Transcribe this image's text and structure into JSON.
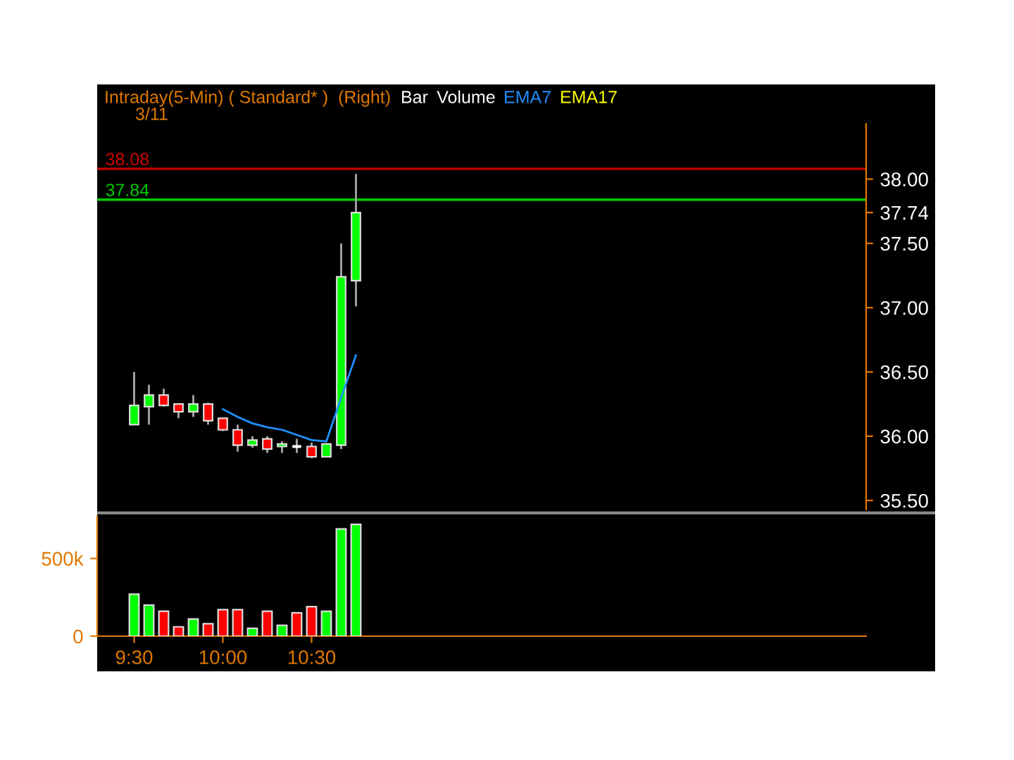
{
  "chart_data": [
    {
      "type": "candlestick",
      "title": "Intraday(5-Min) ( Standard* )  (Right)",
      "annotations": [
        "Bar",
        "Volume",
        "EMA17",
        "3/11"
      ],
      "categories": [
        null,
        null,
        null,
        null,
        null,
        null,
        null,
        null,
        null,
        null,
        null,
        null,
        null,
        null,
        null,
        null,
        null,
        null,
        null,
        null,
        null,
        null,
        null,
        null,
        null,
        null,
        null,
        null,
        null,
        null,
        null,
        null,
        null,
        null,
        null,
        null,
        null,
        null,
        null,
        null,
        null,
        null,
        null,
        null,
        null,
        null,
        null,
        null,
        null,
        null,
        null,
        null
      ],
      "ohlc": [
        null,
        null,
        [
          36.09,
          36.5,
          36.09,
          36.24
        ],
        [
          36.23,
          36.4,
          36.09,
          36.32
        ],
        [
          36.32,
          36.37,
          36.23,
          36.24
        ],
        [
          36.25,
          36.25,
          36.14,
          36.19
        ],
        [
          36.19,
          36.32,
          36.15,
          36.25
        ],
        [
          36.25,
          36.26,
          36.09,
          36.12
        ],
        [
          36.14,
          36.14,
          36.04,
          36.05
        ],
        [
          36.05,
          36.09,
          35.88,
          35.93
        ],
        [
          35.93,
          36.0,
          35.91,
          35.97
        ],
        [
          35.98,
          36.0,
          35.87,
          35.9
        ],
        [
          35.92,
          35.96,
          35.87,
          35.94
        ],
        [
          35.92,
          35.98,
          35.87,
          35.92
        ],
        [
          35.92,
          35.95,
          35.83,
          35.84
        ],
        [
          35.84,
          35.94,
          35.84,
          35.94
        ],
        [
          35.93,
          37.5,
          35.9,
          37.24
        ],
        [
          37.21,
          38.04,
          37.01,
          37.74
        ],
        null,
        null,
        null,
        null,
        null,
        null,
        null,
        null,
        null,
        null,
        null,
        null,
        null,
        null,
        null,
        null,
        null,
        null,
        null,
        null,
        null,
        null,
        null,
        null,
        null,
        null,
        null,
        null,
        null,
        null,
        null,
        null,
        null,
        null
      ],
      "colors": [
        null,
        null,
        "#00ff00",
        "#00ff00",
        "#ff0000",
        "#ff0000",
        "#00ff00",
        "#ff0000",
        "#ff0000",
        "#ff0000",
        "#00ff00",
        "#ff0000",
        "#00ff00",
        "#ffffff",
        "#ff0000",
        "#00ff00",
        "#00ff00",
        "#00ff00",
        null,
        null,
        null,
        null,
        null,
        null,
        null,
        null,
        null,
        null,
        null,
        null,
        null,
        null,
        null,
        null,
        null,
        null,
        null,
        null,
        null,
        null,
        null,
        null,
        null,
        null,
        null,
        null,
        null,
        null,
        null,
        null,
        null,
        null
      ],
      "series": [
        {
          "name": "EMA7",
          "type": "line",
          "color": "#1e90ff",
          "values": [
            null,
            null,
            null,
            null,
            null,
            null,
            null,
            null,
            36.21,
            36.15,
            36.1,
            36.07,
            36.05,
            36.01,
            35.97,
            35.96,
            36.3,
            36.63,
            null,
            null,
            null,
            null,
            null,
            null,
            null,
            null,
            null,
            null,
            null,
            null,
            null,
            null,
            null,
            null,
            null,
            null,
            null,
            null,
            null,
            null,
            null,
            null,
            null,
            null,
            null,
            null,
            null,
            null,
            null,
            null,
            null,
            null
          ]
        }
      ],
      "ref_lines": [
        {
          "axis": "y",
          "value": 38.08,
          "label": "38.08",
          "color": "#cc0000"
        },
        {
          "axis": "y",
          "value": 37.84,
          "label": "37.84",
          "color": "#00cc00"
        }
      ],
      "ylim": [
        35.43,
        38.43
      ],
      "yticks": [
        {
          "value": 35.5,
          "label": "35.50"
        },
        {
          "value": 36,
          "label": "36.00"
        },
        {
          "value": 36.5,
          "label": "36.50"
        },
        {
          "value": 37,
          "label": "37.00"
        },
        {
          "value": 37.5,
          "label": "37.50"
        },
        {
          "value": 37.74,
          "label": "37.74"
        },
        {
          "value": 38,
          "label": "38.00"
        }
      ],
      "tick_labels": "y",
      "grid": false,
      "legend": false
    },
    {
      "type": "bar",
      "categories": [
        null,
        null,
        "9:30",
        null,
        null,
        null,
        null,
        null,
        "10:00",
        null,
        null,
        null,
        null,
        null,
        "10:30",
        null,
        null,
        null,
        null,
        null,
        null,
        null,
        null,
        null,
        null,
        null,
        null,
        null,
        null,
        null,
        null,
        null,
        null,
        null,
        null,
        null,
        null,
        null,
        null,
        null,
        null,
        null,
        null,
        null,
        null,
        null,
        null,
        null,
        null,
        null,
        null,
        null
      ],
      "values": [
        null,
        null,
        270000,
        200000,
        160000,
        60000,
        110000,
        80000,
        170000,
        170000,
        50000,
        160000,
        70000,
        150000,
        190000,
        160000,
        690000,
        720000,
        null,
        null,
        null,
        null,
        null,
        null,
        null,
        null,
        null,
        null,
        null,
        null,
        null,
        null,
        null,
        null,
        null,
        null,
        null,
        null,
        null,
        null,
        null,
        null,
        null,
        null,
        null,
        null,
        null,
        null,
        null,
        null,
        null,
        null
      ],
      "colors": [
        null,
        null,
        "#00ff00",
        "#00ff00",
        "#ff0000",
        "#ff0000",
        "#00ff00",
        "#ff0000",
        "#ff0000",
        "#ff0000",
        "#00ff00",
        "#ff0000",
        "#00ff00",
        "#ff0000",
        "#ff0000",
        "#00ff00",
        "#00ff00",
        "#00ff00",
        null,
        null,
        null,
        null,
        null,
        null,
        null,
        null,
        null,
        null,
        null,
        null,
        null,
        null,
        null,
        null,
        null,
        null,
        null,
        null,
        null,
        null,
        null,
        null,
        null,
        null,
        null,
        null,
        null,
        null,
        null,
        null,
        null,
        null
      ],
      "ylim": [
        0,
        770000
      ],
      "yticks": [
        0,
        {
          "value": 500000,
          "label": "500k"
        }
      ],
      "grid": false
    }
  ]
}
